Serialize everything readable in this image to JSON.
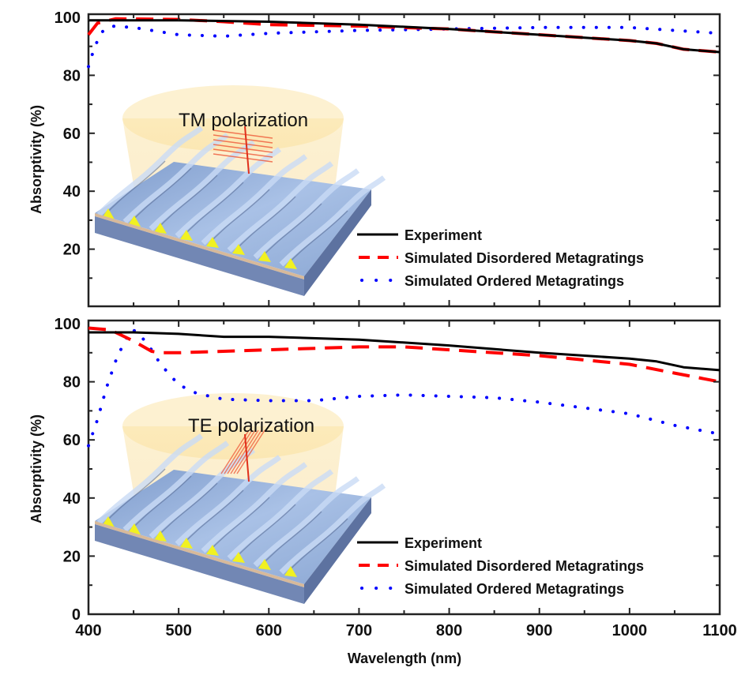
{
  "chart_data": [
    {
      "type": "line",
      "panel": "top",
      "annotation": "TM polarization",
      "xlabel": "Wavelength (nm)",
      "ylabel": "Absorptivity (%)",
      "xlim": [
        400,
        1100
      ],
      "ylim": [
        0,
        100
      ],
      "x_ticks": [
        400,
        500,
        600,
        700,
        800,
        900,
        1000,
        1100
      ],
      "y_ticks": [
        20,
        40,
        60,
        80,
        100
      ],
      "legend_position": "bottom-right",
      "series": [
        {
          "name": "Experiment",
          "style": "solid",
          "color": "#000000",
          "x": [
            400,
            410,
            430,
            500,
            600,
            700,
            800,
            900,
            1000,
            1030,
            1060,
            1100
          ],
          "y": [
            99,
            99,
            99,
            99,
            98.5,
            97.5,
            96,
            94,
            92,
            91,
            89,
            88
          ]
        },
        {
          "name": "Simulated Disordered Metagratings",
          "style": "dashed",
          "color": "#ff0000",
          "x": [
            400,
            410,
            430,
            500,
            550,
            600,
            700,
            800,
            900,
            1000,
            1030,
            1060,
            1100
          ],
          "y": [
            94,
            98,
            99.5,
            99.3,
            98.5,
            97.5,
            97,
            96,
            94,
            92,
            91,
            89,
            88
          ]
        },
        {
          "name": "Simulated Ordered Metagratings",
          "style": "dotted",
          "color": "#0000ff",
          "x": [
            400,
            405,
            410,
            415,
            425,
            450,
            500,
            550,
            600,
            700,
            800,
            900,
            1000,
            1050,
            1100
          ],
          "y": [
            83,
            88,
            92,
            95,
            97,
            96.5,
            94,
            93.5,
            94.5,
            95.5,
            96,
            96.5,
            96.5,
            95.5,
            94.5
          ]
        }
      ]
    },
    {
      "type": "line",
      "panel": "bottom",
      "annotation": "TE polarization",
      "xlabel": "Wavelength (nm)",
      "ylabel": "Absorptivity (%)",
      "xlim": [
        400,
        1100
      ],
      "ylim": [
        0,
        100
      ],
      "x_ticks": [
        400,
        500,
        600,
        700,
        800,
        900,
        1000,
        1100
      ],
      "y_ticks": [
        0,
        20,
        40,
        60,
        80,
        100
      ],
      "legend_position": "bottom-right",
      "series": [
        {
          "name": "Experiment",
          "style": "solid",
          "color": "#000000",
          "x": [
            400,
            450,
            500,
            550,
            600,
            700,
            800,
            900,
            1000,
            1030,
            1060,
            1100
          ],
          "y": [
            97,
            97,
            96.5,
            95.5,
            95.5,
            94.5,
            92.5,
            90,
            88,
            87,
            85,
            84
          ]
        },
        {
          "name": "Simulated Disordered Metagratings",
          "style": "dashed",
          "color": "#ff0000",
          "x": [
            400,
            420,
            430,
            450,
            470,
            480,
            500,
            600,
            700,
            750,
            800,
            900,
            1000,
            1050,
            1100
          ],
          "y": [
            98.5,
            98,
            97,
            94,
            90.5,
            90,
            90,
            91,
            92,
            92,
            91,
            89,
            86,
            83,
            80
          ]
        },
        {
          "name": "Simulated Ordered Metagratings",
          "style": "dotted",
          "color": "#0000ff",
          "x": [
            400,
            410,
            420,
            430,
            440,
            448,
            455,
            470,
            480,
            500,
            520,
            550,
            600,
            650,
            700,
            750,
            800,
            850,
            900,
            950,
            1000,
            1050,
            1100
          ],
          "y": [
            58,
            67,
            78,
            87,
            94,
            98,
            97,
            91,
            86,
            79,
            76,
            74,
            73.5,
            73.5,
            75,
            75.5,
            75,
            74.5,
            73,
            71,
            69,
            65,
            62
          ]
        }
      ]
    }
  ]
}
